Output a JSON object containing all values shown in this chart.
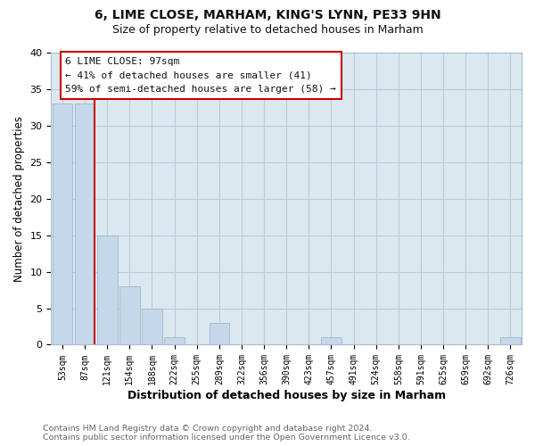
{
  "title": "6, LIME CLOSE, MARHAM, KING'S LYNN, PE33 9HN",
  "subtitle": "Size of property relative to detached houses in Marham",
  "xlabel": "Distribution of detached houses by size in Marham",
  "ylabel": "Number of detached properties",
  "bar_labels": [
    "53sqm",
    "87sqm",
    "121sqm",
    "154sqm",
    "188sqm",
    "222sqm",
    "255sqm",
    "289sqm",
    "322sqm",
    "356sqm",
    "390sqm",
    "423sqm",
    "457sqm",
    "491sqm",
    "524sqm",
    "558sqm",
    "591sqm",
    "625sqm",
    "659sqm",
    "692sqm",
    "726sqm"
  ],
  "bar_values": [
    33,
    33,
    15,
    8,
    5,
    1,
    0,
    3,
    0,
    0,
    0,
    0,
    1,
    0,
    0,
    0,
    0,
    0,
    0,
    0,
    1
  ],
  "bar_color": "#c5d8ea",
  "bar_edge_color": "#a0b8cc",
  "marker_index": 1,
  "marker_color": "#cc0000",
  "ylim": [
    0,
    40
  ],
  "yticks": [
    0,
    5,
    10,
    15,
    20,
    25,
    30,
    35,
    40
  ],
  "annotation_title": "6 LIME CLOSE: 97sqm",
  "annotation_line1": "← 41% of detached houses are smaller (41)",
  "annotation_line2": "59% of semi-detached houses are larger (58) →",
  "footer1": "Contains HM Land Registry data © Crown copyright and database right 2024.",
  "footer2": "Contains public sector information licensed under the Open Government Licence v3.0.",
  "background_color": "#ffffff",
  "plot_background": "#dce8f0",
  "grid_color": "#b8ccd8"
}
